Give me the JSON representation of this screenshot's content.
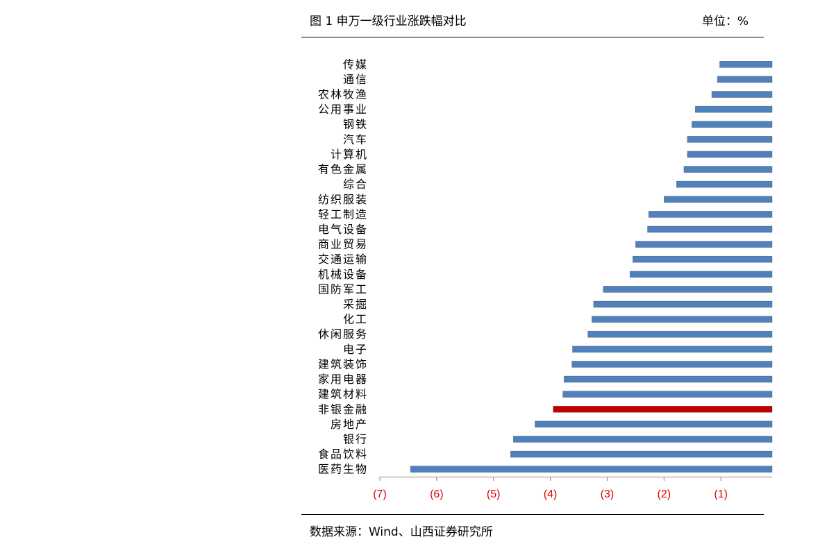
{
  "chart_data": {
    "type": "hbar",
    "title": "图 1 申万一级行业涨跌幅对比",
    "unit": "单位：%",
    "source": "数据来源：Wind、山西证券研究所",
    "categories": [
      "传媒",
      "通信",
      "农林牧渔",
      "公用事业",
      "钢铁",
      "汽车",
      "计算机",
      "有色金属",
      "综合",
      "纺织服装",
      "轻工制造",
      "电气设备",
      "商业贸易",
      "交通运输",
      "机械设备",
      "国防军工",
      "采掘",
      "化工",
      "休闲服务",
      "电子",
      "建筑装饰",
      "家用电器",
      "建筑材料",
      "非银金融",
      "房地产",
      "银行",
      "食品饮料",
      "医药生物"
    ],
    "values": [
      -1.02,
      -1.06,
      -1.16,
      -1.45,
      -1.51,
      -1.59,
      -1.59,
      -1.65,
      -1.78,
      -2.0,
      -2.27,
      -2.29,
      -2.5,
      -2.55,
      -2.6,
      -3.07,
      -3.24,
      -3.27,
      -3.34,
      -3.61,
      -3.62,
      -3.76,
      -3.78,
      -3.95,
      -4.27,
      -4.65,
      -4.7,
      -6.46
    ],
    "colors": [
      "#4f81bd",
      "#4f81bd",
      "#4f81bd",
      "#4f81bd",
      "#4f81bd",
      "#4f81bd",
      "#4f81bd",
      "#4f81bd",
      "#4f81bd",
      "#4f81bd",
      "#4f81bd",
      "#4f81bd",
      "#4f81bd",
      "#4f81bd",
      "#4f81bd",
      "#4f81bd",
      "#4f81bd",
      "#4f81bd",
      "#4f81bd",
      "#4f81bd",
      "#4f81bd",
      "#4f81bd",
      "#4f81bd",
      "#c00000",
      "#4f81bd",
      "#4f81bd",
      "#4f81bd",
      "#4f81bd"
    ],
    "xlim": [
      -7,
      0
    ],
    "xticks": [
      {
        "value": -7,
        "label": "(7)"
      },
      {
        "value": -6,
        "label": "(6)"
      },
      {
        "value": -5,
        "label": "(5)"
      },
      {
        "value": -4,
        "label": "(4)"
      },
      {
        "value": -3,
        "label": "(3)"
      },
      {
        "value": -2,
        "label": "(2)"
      },
      {
        "value": -1,
        "label": "(1)"
      }
    ],
    "tick_label_color": "#e00000"
  }
}
